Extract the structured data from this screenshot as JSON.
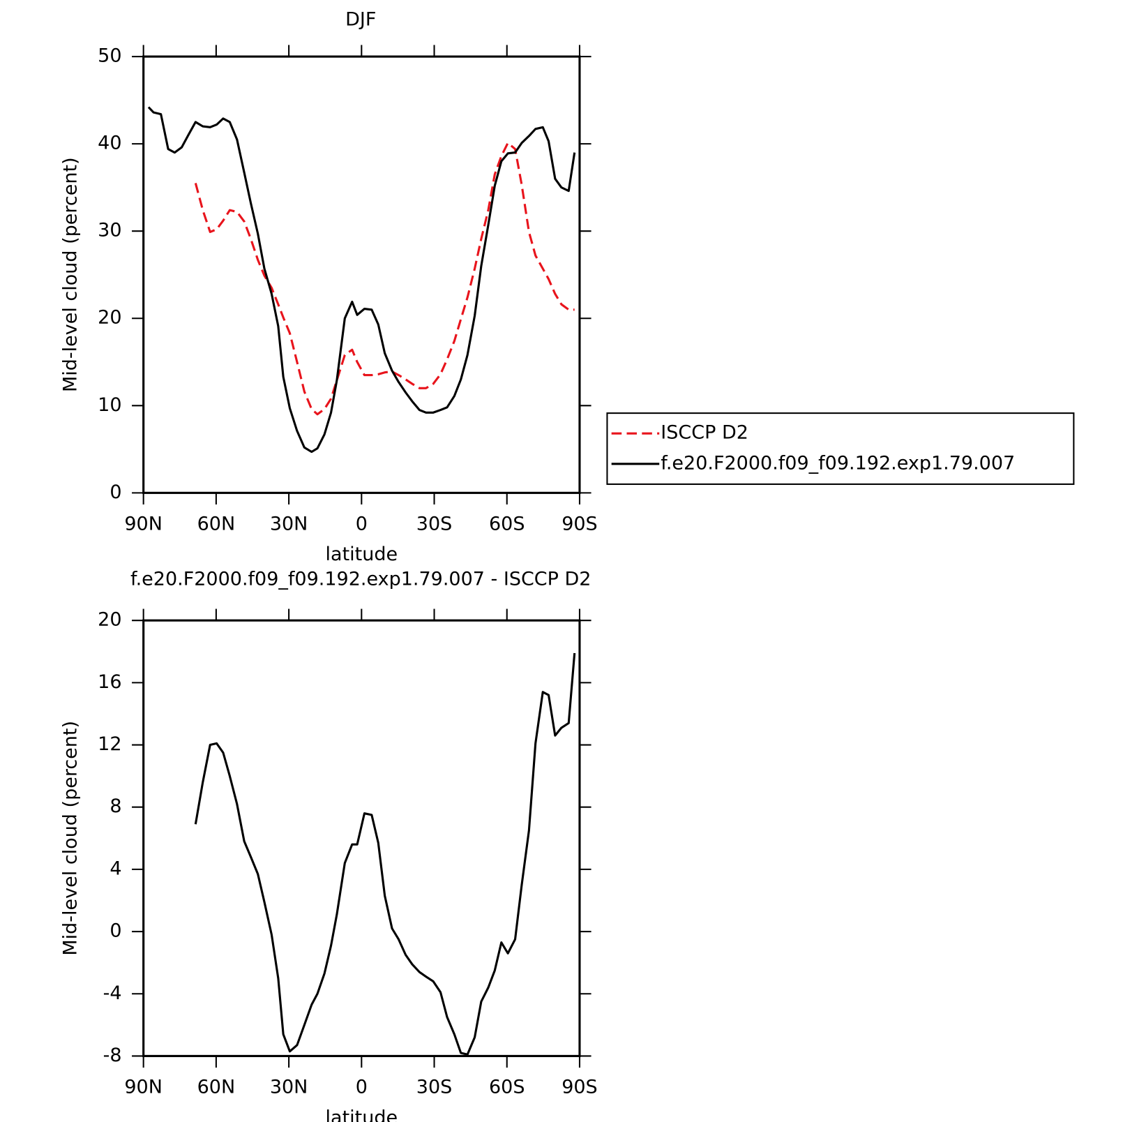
{
  "chart_data": [
    {
      "type": "line",
      "title": "DJF",
      "xlabel": "latitude",
      "ylabel": "Mid-level cloud (percent)",
      "x": [
        87.9,
        85.8,
        82.8,
        79.8,
        77.1,
        74.2,
        71.5,
        68.5,
        65.5,
        62.5,
        59.8,
        57.1,
        54.4,
        51.4,
        48.4,
        45.7,
        42.8,
        40.1,
        37.1,
        34.4,
        32.3,
        29.6,
        26.6,
        23.6,
        20.6,
        18.2,
        15.3,
        12.6,
        10.2,
        6.9,
        3.9,
        1.8,
        -1.2,
        -4.2,
        -6.9,
        -9.6,
        -12.6,
        -15.3,
        -18.2,
        -20.9,
        -23.9,
        -26.6,
        -29.6,
        -32.6,
        -35.3,
        -38.3,
        -41.0,
        -43.7,
        -46.7,
        -49.4,
        -52.3,
        -55.0,
        -57.7,
        -60.4,
        -63.4,
        -66.1,
        -69.1,
        -71.8,
        -74.8,
        -77.2,
        -79.9,
        -82.5,
        -85.5,
        -87.9
      ],
      "series": [
        {
          "name": "ISCCP D2",
          "color": "#e8141c",
          "linestyle": "dashed",
          "values": [
            null,
            null,
            null,
            null,
            null,
            null,
            null,
            35.5,
            32.4,
            29.9,
            30.2,
            31.2,
            32.4,
            32.2,
            31.1,
            29.1,
            26.7,
            24.9,
            23.5,
            21.6,
            20.1,
            18.3,
            15.0,
            11.6,
            9.6,
            9.0,
            9.6,
            10.8,
            12.9,
            15.8,
            16.4,
            15.0,
            13.5,
            13.5,
            13.6,
            13.8,
            13.9,
            13.5,
            13.0,
            12.5,
            12.0,
            12.0,
            12.5,
            13.6,
            15.3,
            17.4,
            19.9,
            22.4,
            25.7,
            29.1,
            32.4,
            36.5,
            38.6,
            40.1,
            39.4,
            35.3,
            29.9,
            27.2,
            25.7,
            24.5,
            22.8,
            21.6,
            21.0,
            21.0
          ]
        },
        {
          "name": "f.e20.F2000.f09_f09.192.exp1.79.007",
          "color": "#000000",
          "linestyle": "solid",
          "values": [
            44.2,
            43.6,
            43.4,
            39.4,
            39.0,
            39.6,
            41.0,
            42.5,
            42.0,
            41.9,
            42.2,
            42.9,
            42.5,
            40.5,
            36.7,
            33.2,
            29.7,
            25.7,
            22.8,
            19.1,
            13.3,
            9.7,
            7.1,
            5.2,
            4.7,
            5.1,
            6.7,
            9.2,
            12.9,
            20.0,
            21.9,
            20.4,
            21.1,
            21.0,
            19.3,
            16.0,
            14.0,
            12.7,
            11.5,
            10.5,
            9.5,
            9.2,
            9.2,
            9.5,
            9.8,
            11.1,
            13.0,
            15.8,
            20.3,
            26.0,
            30.7,
            35.2,
            38.0,
            38.9,
            39.0,
            40.1,
            40.9,
            41.7,
            41.9,
            40.3,
            36.0,
            35.0,
            34.6,
            39.0
          ]
        }
      ],
      "xlim": [
        90,
        -90
      ],
      "ylim": [
        0,
        50
      ],
      "xticks": [
        {
          "value": 90,
          "label": "90N"
        },
        {
          "value": 60,
          "label": "60N"
        },
        {
          "value": 30,
          "label": "30N"
        },
        0,
        {
          "value": -30,
          "label": "30S"
        },
        {
          "value": -60,
          "label": "60S"
        },
        {
          "value": -90,
          "label": "90S"
        }
      ],
      "yticks": [
        0,
        10,
        20,
        30,
        40,
        50
      ],
      "legend": "right"
    },
    {
      "type": "line",
      "title": "f.e20.F2000.f09_f09.192.exp1.79.007 - ISCCP D2",
      "xlabel": "latitude",
      "ylabel": "Mid-level cloud (percent)",
      "x": [
        68.5,
        65.5,
        62.5,
        59.8,
        57.1,
        54.4,
        51.4,
        48.4,
        45.7,
        42.8,
        40.1,
        37.1,
        34.4,
        32.3,
        29.6,
        26.6,
        23.6,
        20.6,
        18.2,
        15.3,
        12.6,
        10.2,
        6.9,
        3.9,
        1.8,
        -1.2,
        -4.2,
        -6.9,
        -9.6,
        -12.6,
        -15.3,
        -18.2,
        -20.9,
        -23.9,
        -26.6,
        -29.6,
        -32.6,
        -35.3,
        -38.3,
        -41.0,
        -43.7,
        -46.7,
        -49.4,
        -52.3,
        -55.0,
        -57.7,
        -60.4,
        -63.4,
        -66.1,
        -69.1,
        -71.8,
        -74.8,
        -77.2,
        -79.9,
        -82.5,
        -85.5,
        -87.9
      ],
      "values": [
        6.9,
        9.6,
        12.0,
        12.1,
        11.5,
        10.0,
        8.2,
        5.8,
        4.8,
        3.7,
        1.9,
        -0.2,
        -3.0,
        -6.6,
        -7.7,
        -7.3,
        -6.0,
        -4.7,
        -4.0,
        -2.7,
        -0.9,
        1.1,
        4.4,
        5.6,
        5.6,
        7.6,
        7.5,
        5.7,
        2.3,
        0.2,
        -0.5,
        -1.5,
        -2.1,
        -2.6,
        -2.9,
        -3.2,
        -3.9,
        -5.5,
        -6.6,
        -7.8,
        -7.9,
        -6.8,
        -4.5,
        -3.6,
        -2.5,
        -0.7,
        -1.4,
        -0.5,
        3.0,
        6.5,
        12.1,
        15.4,
        15.2,
        12.6,
        13.1,
        13.4,
        17.9
      ],
      "color": "#000000",
      "xlim": [
        90,
        -90
      ],
      "ylim": [
        -8,
        20
      ],
      "xticks": [
        {
          "value": 90,
          "label": "90N"
        },
        {
          "value": 60,
          "label": "60N"
        },
        {
          "value": 30,
          "label": "30N"
        },
        0,
        {
          "value": -30,
          "label": "30S"
        },
        {
          "value": -60,
          "label": "60S"
        },
        {
          "value": -90,
          "label": "90S"
        }
      ],
      "yticks": [
        -8,
        -4,
        0,
        4,
        8,
        12,
        16,
        20
      ]
    }
  ]
}
